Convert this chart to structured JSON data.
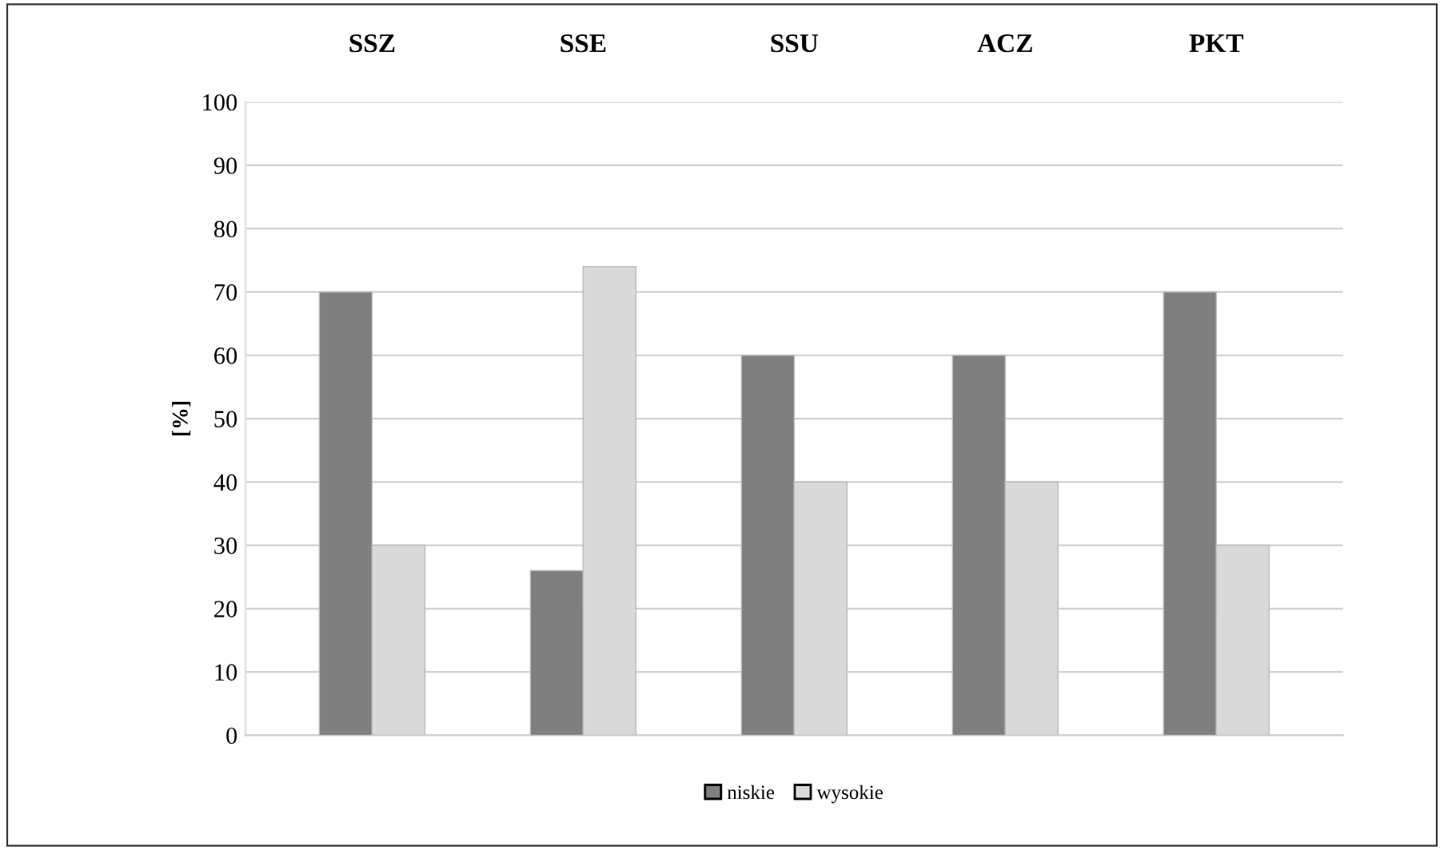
{
  "chart_data": {
    "type": "bar",
    "ylabel": "[%]",
    "categories": [
      "SSZ",
      "SSE",
      "SSU",
      "ACZ",
      "PKT"
    ],
    "series": [
      {
        "name": "niskie",
        "color": "#7f7f7f",
        "values": [
          70,
          26,
          60,
          60,
          70
        ]
      },
      {
        "name": "wysokie",
        "color": "#d9d9d9",
        "values": [
          30,
          74,
          40,
          40,
          30
        ]
      }
    ],
    "ylim": [
      0,
      100
    ],
    "yticks": [
      0,
      10,
      20,
      30,
      40,
      50,
      60,
      70,
      80,
      90,
      100
    ],
    "grid": "y",
    "legend": "bottom"
  }
}
